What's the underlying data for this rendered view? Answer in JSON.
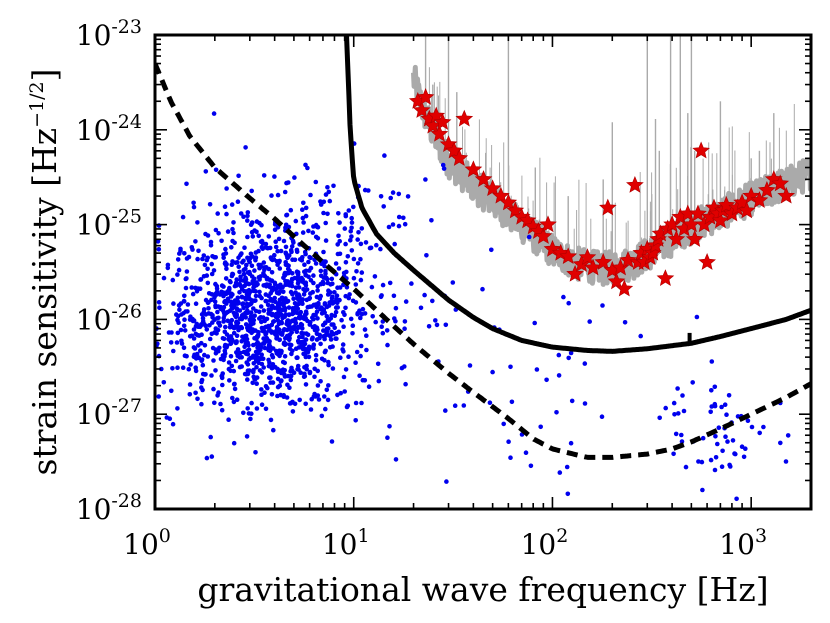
{
  "chart_data": {
    "type": "scatter",
    "title": "",
    "xlabel": "gravitational wave frequency [Hz]",
    "ylabel_main": "strain sensitivity [Hz",
    "ylabel_exp": "−1/2",
    "ylabel_close": "]",
    "xscale": "log",
    "yscale": "log",
    "xlim": [
      1,
      2000
    ],
    "ylim": [
      1e-28,
      1e-23
    ],
    "x_ticks": [
      {
        "value": 1,
        "base": "10",
        "exp": "0"
      },
      {
        "value": 10,
        "base": "10",
        "exp": "1"
      },
      {
        "value": 100,
        "base": "10",
        "exp": "2"
      },
      {
        "value": 1000,
        "base": "10",
        "exp": "3"
      }
    ],
    "y_ticks": [
      {
        "value": 1e-23,
        "base": "10",
        "exp": "-23"
      },
      {
        "value": 1e-24,
        "base": "10",
        "exp": "-24"
      },
      {
        "value": 1e-25,
        "base": "10",
        "exp": "-25"
      },
      {
        "value": 1e-26,
        "base": "10",
        "exp": "-26"
      },
      {
        "value": 1e-27,
        "base": "10",
        "exp": "-27"
      },
      {
        "value": 1e-28,
        "base": "10",
        "exp": "-28"
      }
    ],
    "grid": false,
    "legend": "none",
    "colors": {
      "dots": "#0000ee",
      "stars": "#e00000",
      "noise": "#aaaaaa",
      "curves": "#000000"
    },
    "series": [
      {
        "name": "observed sensitivity (gray)",
        "kind": "line",
        "points": [
          [
            20,
            3e-24
          ],
          [
            22,
            1.5e-24
          ],
          [
            25,
            8e-25
          ],
          [
            30,
            4e-25
          ],
          [
            40,
            2.2e-25
          ],
          [
            60,
            1.1e-25
          ],
          [
            80,
            6.5e-26
          ],
          [
            100,
            4.5e-26
          ],
          [
            130,
            3.3e-26
          ],
          [
            180,
            2.9e-26
          ],
          [
            250,
            3.3e-26
          ],
          [
            350,
            5e-26
          ],
          [
            500,
            8e-26
          ],
          [
            700,
            1.1e-25
          ],
          [
            1000,
            1.6e-25
          ],
          [
            1500,
            2.3e-25
          ],
          [
            2000,
            3e-25
          ]
        ],
        "spikes": [
          {
            "f": 23,
            "top": 1e-23
          },
          {
            "f": 25,
            "top": 3e-24
          },
          {
            "f": 30,
            "top": 1e-23
          },
          {
            "f": 33,
            "top": 2.5e-24
          },
          {
            "f": 60,
            "top": 1e-23
          },
          {
            "f": 82,
            "top": 4e-25
          },
          {
            "f": 120,
            "top": 2e-25
          },
          {
            "f": 180,
            "top": 3e-25
          },
          {
            "f": 200,
            "top": 1.2e-24
          },
          {
            "f": 300,
            "top": 1e-23
          },
          {
            "f": 330,
            "top": 1.3e-24
          },
          {
            "f": 345,
            "top": 6e-25
          },
          {
            "f": 393,
            "top": 1e-23
          },
          {
            "f": 440,
            "top": 1e-23
          },
          {
            "f": 480,
            "top": 1.5e-24
          },
          {
            "f": 500,
            "top": 1e-23
          },
          {
            "f": 520,
            "top": 6e-25
          },
          {
            "f": 700,
            "top": 2e-24
          },
          {
            "f": 1000,
            "top": 5e-25
          },
          {
            "f": 1100,
            "top": 6e-25
          },
          {
            "f": 1300,
            "top": 1.5e-24
          }
        ]
      },
      {
        "name": "design sensitivity (solid)",
        "kind": "line",
        "points": [
          [
            9.2,
            1e-23
          ],
          [
            9.6,
            1e-24
          ],
          [
            10,
            3e-25
          ],
          [
            11,
            1.5e-25
          ],
          [
            13,
            8e-26
          ],
          [
            16,
            5e-26
          ],
          [
            20,
            3.3e-26
          ],
          [
            30,
            1.6e-26
          ],
          [
            40,
            1.05e-26
          ],
          [
            50,
            8e-27
          ],
          [
            70,
            6e-27
          ],
          [
            100,
            5.1e-27
          ],
          [
            150,
            4.7e-27
          ],
          [
            200,
            4.6e-27
          ],
          [
            300,
            4.9e-27
          ],
          [
            500,
            5.6e-27
          ],
          [
            700,
            6.6e-27
          ],
          [
            1000,
            8e-27
          ],
          [
            1500,
            1e-26
          ],
          [
            2000,
            1.25e-26
          ]
        ],
        "features": [
          {
            "f": 490,
            "low": 5.3e-27,
            "high": 7.2e-27
          }
        ]
      },
      {
        "name": "future sensitivity (dashed)",
        "kind": "line",
        "points": [
          [
            1,
            5e-24
          ],
          [
            1.2,
            2e-24
          ],
          [
            1.5,
            8.5e-25
          ],
          [
            2,
            4e-25
          ],
          [
            3,
            1.9e-25
          ],
          [
            4,
            1.15e-25
          ],
          [
            5,
            7.5e-26
          ],
          [
            7,
            4e-26
          ],
          [
            10,
            2.1e-26
          ],
          [
            15,
            9.5e-27
          ],
          [
            20,
            5.5e-27
          ],
          [
            30,
            2.7e-27
          ],
          [
            40,
            1.7e-27
          ],
          [
            60,
            9e-28
          ],
          [
            80,
            5.5e-28
          ],
          [
            100,
            4.3e-28
          ],
          [
            150,
            3.5e-28
          ],
          [
            200,
            3.5e-28
          ],
          [
            300,
            3.8e-28
          ],
          [
            400,
            4.3e-28
          ],
          [
            500,
            5.1e-28
          ],
          [
            700,
            7e-28
          ],
          [
            1000,
            1e-27
          ],
          [
            1500,
            1.5e-27
          ],
          [
            2000,
            2.1e-27
          ]
        ]
      },
      {
        "name": "sources (blue dots)",
        "kind": "scatter",
        "marker": "dot",
        "count": 1600,
        "clusters": [
          {
            "n": 1150,
            "center_f": 3.5,
            "center_h": 9e-27,
            "sd_logf": 0.25,
            "sd_logh": 0.42
          },
          {
            "n": 330,
            "center_f": 5,
            "center_h": 4e-26,
            "sd_logf": 0.3,
            "sd_logh": 0.5
          },
          {
            "n": 60,
            "center_f": 700,
            "center_h": 8e-28,
            "sd_logf": 0.12,
            "sd_logh": 0.3
          },
          {
            "n": 60,
            "center_f": 60,
            "center_h": 2e-27,
            "sd_logf": 0.4,
            "sd_logh": 0.6
          }
        ]
      },
      {
        "name": "upper limits (red stars)",
        "kind": "scatter",
        "marker": "star",
        "points": [
          [
            21,
            2e-24
          ],
          [
            22,
            1.6e-24
          ],
          [
            23,
            2.2e-24
          ],
          [
            24,
            1.3e-24
          ],
          [
            25,
            1.1e-24
          ],
          [
            26,
            1.4e-24
          ],
          [
            27,
            9e-25
          ],
          [
            28,
            1.2e-24
          ],
          [
            30,
            7e-25
          ],
          [
            32,
            6e-25
          ],
          [
            34,
            5e-25
          ],
          [
            36,
            1.3e-24
          ],
          [
            40,
            3.8e-25
          ],
          [
            45,
            3e-25
          ],
          [
            50,
            2.4e-25
          ],
          [
            55,
            2e-25
          ],
          [
            60,
            1.7e-25
          ],
          [
            65,
            1.4e-25
          ],
          [
            70,
            1.2e-25
          ],
          [
            75,
            1.1e-25
          ],
          [
            80,
            9.5e-26
          ],
          [
            85,
            8.5e-26
          ],
          [
            90,
            7.5e-26
          ],
          [
            95,
            1e-25
          ],
          [
            100,
            5.5e-26
          ],
          [
            110,
            5e-26
          ],
          [
            120,
            4.6e-26
          ],
          [
            130,
            3e-26
          ],
          [
            140,
            3.8e-26
          ],
          [
            150,
            4.5e-26
          ],
          [
            160,
            3.5e-26
          ],
          [
            180,
            4e-26
          ],
          [
            190,
            1.5e-25
          ],
          [
            200,
            3.3e-26
          ],
          [
            210,
            2.5e-26
          ],
          [
            220,
            3.5e-26
          ],
          [
            230,
            2.1e-26
          ],
          [
            240,
            4.2e-26
          ],
          [
            260,
            2.6e-25
          ],
          [
            270,
            4e-26
          ],
          [
            280,
            5e-26
          ],
          [
            290,
            4e-26
          ],
          [
            300,
            5.5e-26
          ],
          [
            310,
            4.5e-26
          ],
          [
            320,
            5e-26
          ],
          [
            330,
            6e-26
          ],
          [
            340,
            7e-26
          ],
          [
            350,
            8e-26
          ],
          [
            370,
            2.7e-26
          ],
          [
            380,
            9e-26
          ],
          [
            400,
            1e-25
          ],
          [
            420,
            7e-26
          ],
          [
            440,
            1.2e-25
          ],
          [
            460,
            9e-26
          ],
          [
            480,
            1.3e-25
          ],
          [
            500,
            1e-25
          ],
          [
            520,
            7e-26
          ],
          [
            540,
            1.3e-25
          ],
          [
            560,
            6e-25
          ],
          [
            580,
            1e-25
          ],
          [
            600,
            4e-26
          ],
          [
            620,
            1.2e-25
          ],
          [
            650,
            1.5e-25
          ],
          [
            680,
            1.3e-25
          ],
          [
            700,
            1.1e-25
          ],
          [
            720,
            1.4e-25
          ],
          [
            750,
            1.6e-25
          ],
          [
            800,
            1.3e-25
          ],
          [
            850,
            1.5e-25
          ],
          [
            900,
            1.7e-25
          ],
          [
            950,
            1.4e-25
          ],
          [
            1000,
            2e-25
          ],
          [
            1100,
            1.8e-25
          ],
          [
            1200,
            2.3e-25
          ],
          [
            1300,
            3e-25
          ],
          [
            1400,
            2.7e-25
          ],
          [
            1500,
            2e-25
          ]
        ]
      }
    ]
  }
}
